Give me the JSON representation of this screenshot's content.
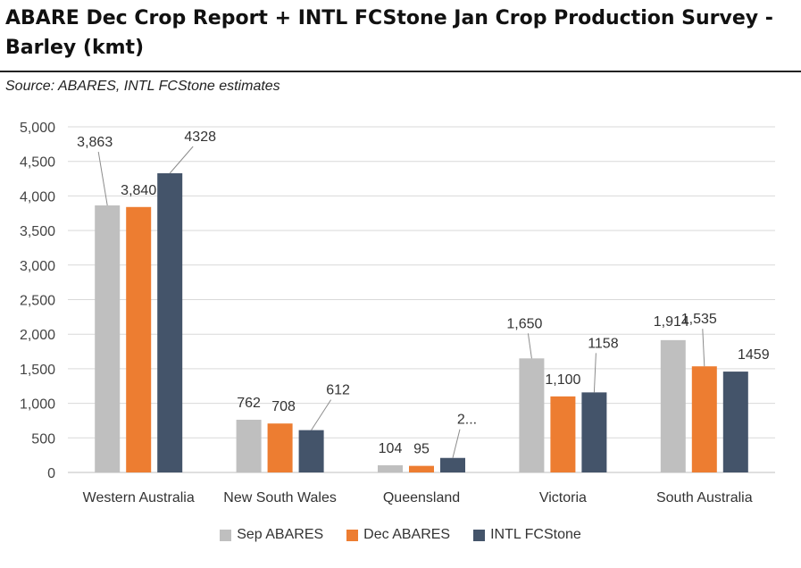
{
  "title": "ABARE Dec Crop Report + INTL FCStone Jan Crop Production Survey - Barley (kmt)",
  "source": "Source: ABARES, INTL FCStone estimates",
  "chart_data": {
    "type": "bar",
    "title": "ABARE Dec Crop Report + INTL FCStone Jan Crop Production Survey - Barley (kmt)",
    "xlabel": "",
    "ylabel": "",
    "ylim": [
      0,
      5000
    ],
    "yticks": [
      "0",
      "500",
      "1,000",
      "1,500",
      "2,000",
      "2,500",
      "3,000",
      "3,500",
      "4,000",
      "4,500",
      "5,000"
    ],
    "grid": true,
    "legend_position": "bottom",
    "categories": [
      "Western Australia",
      "New South Wales",
      "Queensland",
      "Victoria",
      "South Australia"
    ],
    "series": [
      {
        "name": "Sep ABARES",
        "color": "#bfbfbf",
        "values": [
          3863,
          762,
          104,
          1650,
          1914
        ],
        "labels": [
          "3,863",
          "762",
          "104",
          "1,650",
          "1,914"
        ]
      },
      {
        "name": "Dec ABARES",
        "color": "#ed7d31",
        "values": [
          3840,
          708,
          95,
          1100,
          1535
        ],
        "labels": [
          "3,840",
          "708",
          "95",
          "1,100",
          "1,535"
        ]
      },
      {
        "name": "INTL FCStone",
        "color": "#44546a",
        "values": [
          4328,
          612,
          210,
          1158,
          1459
        ],
        "labels": [
          "4328",
          "612",
          "2...",
          "1158",
          "1459"
        ]
      }
    ]
  }
}
